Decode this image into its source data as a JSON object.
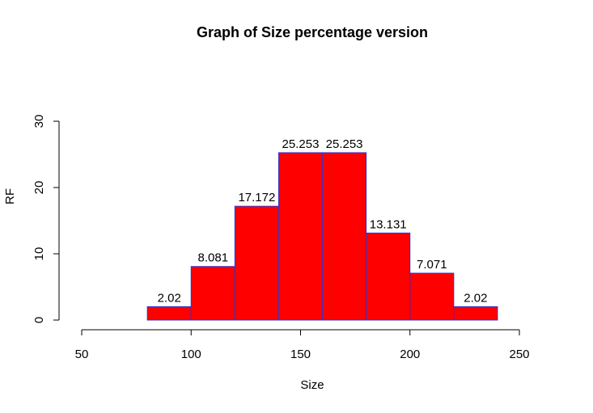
{
  "chart_data": {
    "type": "bar",
    "title": "Graph of Size percentage version",
    "xlabel": "Size",
    "ylabel": "RF",
    "bins": [
      {
        "x0": 80,
        "x1": 100,
        "value": 2.02,
        "label": "2.02"
      },
      {
        "x0": 100,
        "x1": 120,
        "value": 8.081,
        "label": "8.081"
      },
      {
        "x0": 120,
        "x1": 140,
        "value": 17.172,
        "label": "17.172"
      },
      {
        "x0": 140,
        "x1": 160,
        "value": 25.253,
        "label": "25.253"
      },
      {
        "x0": 160,
        "x1": 180,
        "value": 25.253,
        "label": "25.253"
      },
      {
        "x0": 180,
        "x1": 200,
        "value": 13.131,
        "label": "13.131"
      },
      {
        "x0": 200,
        "x1": 220,
        "value": 7.071,
        "label": "7.071"
      },
      {
        "x0": 220,
        "x1": 240,
        "value": 2.02,
        "label": "2.02"
      }
    ],
    "xlim": [
      50,
      250
    ],
    "ylim": [
      0,
      30
    ],
    "x_ticks": [
      "50",
      "100",
      "150",
      "200",
      "250"
    ],
    "y_ticks": [
      "0",
      "10",
      "20",
      "30"
    ],
    "grid": false,
    "colors": {
      "fill": "#ff0000",
      "border": "#3333cc",
      "axis": "#000000"
    }
  }
}
